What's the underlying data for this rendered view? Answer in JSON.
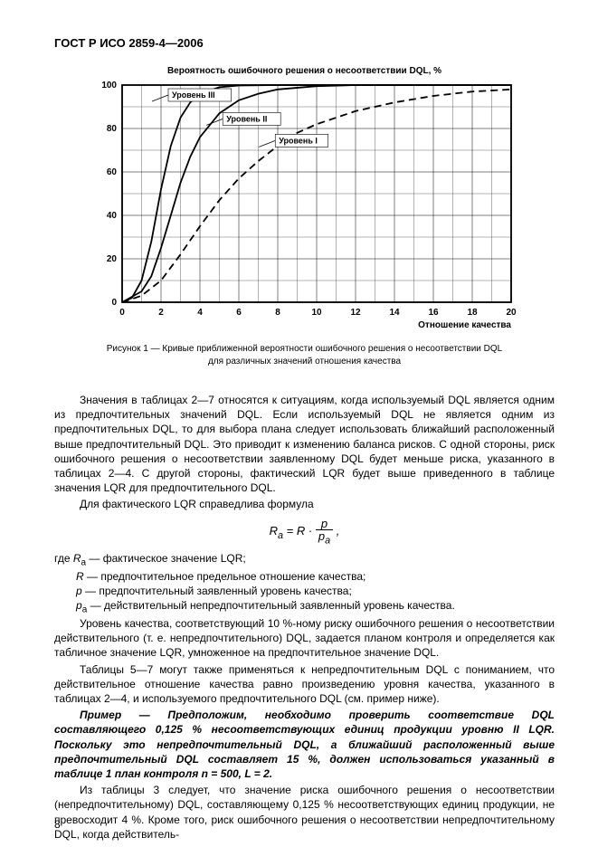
{
  "header": "ГОСТ Р ИСО 2859-4—2006",
  "chart": {
    "title": "Вероятность ошибочного решения о несоответствии DQL, %",
    "xaxis_label": "Отношение качества",
    "xticks": [
      0,
      2,
      4,
      6,
      8,
      10,
      12,
      14,
      16,
      18,
      20
    ],
    "yticks": [
      0,
      20,
      40,
      60,
      80,
      100
    ],
    "xlim": [
      0,
      20
    ],
    "ylim": [
      0,
      100
    ],
    "grid_color": "#000000",
    "bg_color": "#ffffff",
    "line_color": "#000000",
    "series": [
      {
        "name": "Уровень III",
        "label": "Уровень III",
        "label_x": 2.0,
        "label_y": 95,
        "dash": "",
        "pts": [
          [
            0,
            0
          ],
          [
            0.5,
            2
          ],
          [
            1,
            10
          ],
          [
            1.5,
            28
          ],
          [
            2,
            52
          ],
          [
            2.5,
            72
          ],
          [
            3,
            85
          ],
          [
            3.5,
            92
          ],
          [
            4,
            96
          ],
          [
            5,
            99
          ],
          [
            6,
            99.8
          ],
          [
            8,
            100
          ],
          [
            20,
            100
          ]
        ]
      },
      {
        "name": "Уровень II",
        "label": "Уровень II",
        "label_x": 4.8,
        "label_y": 84,
        "dash": "",
        "pts": [
          [
            0,
            0
          ],
          [
            1,
            5
          ],
          [
            1.5,
            12
          ],
          [
            2,
            25
          ],
          [
            2.5,
            40
          ],
          [
            3,
            55
          ],
          [
            3.5,
            67
          ],
          [
            4,
            76
          ],
          [
            5,
            87
          ],
          [
            6,
            93
          ],
          [
            7,
            96
          ],
          [
            8,
            98
          ],
          [
            10,
            99.5
          ],
          [
            12,
            100
          ],
          [
            20,
            100
          ]
        ]
      },
      {
        "name": "Уровень I",
        "label": "Уровень I",
        "label_x": 7.5,
        "label_y": 74,
        "dash": "8 5",
        "pts": [
          [
            0,
            0
          ],
          [
            1,
            3
          ],
          [
            2,
            10
          ],
          [
            3,
            22
          ],
          [
            4,
            35
          ],
          [
            5,
            47
          ],
          [
            6,
            57
          ],
          [
            7,
            65
          ],
          [
            8,
            72
          ],
          [
            9,
            78
          ],
          [
            10,
            82
          ],
          [
            12,
            88
          ],
          [
            14,
            92
          ],
          [
            16,
            95
          ],
          [
            18,
            97
          ],
          [
            20,
            98
          ]
        ]
      }
    ]
  },
  "caption_l1": "Рисунок 1 — Кривые приближенной вероятности ошибочного решения о несоответствии DQL",
  "caption_l2": "для различных значений отношения качества",
  "p1": "Значения в таблицах 2—7 относятся к ситуациям, когда используемый DQL является одним из предпочтительных значений DQL. Если используемый DQL не является одним из предпочтительных DQL, то для выбора плана следует использовать ближайший расположенный выше предпочтительный DQL. Это приводит к изменению баланса рисков. С одной стороны, риск ошибочного решения о несоответствии заявленному DQL будет меньше риска, указанного в таблицах 2—4. С другой стороны, фактический LQR будет выше приведенного в таблице значения LQR для предпочтительного DQL.",
  "p2": "Для фактического LQR справедлива формула",
  "formula_plain": "Rₐ = R · p / pₐ ,",
  "where_intro": "где ",
  "w1": "Rₐ — фактическое значение LQR;",
  "w2": "R — предпочтительное предельное отношение качества;",
  "w3": "p — предпочтительный заявленный уровень качества;",
  "w4": "pₐ — действительный непредпочтительный заявленный уровень качества.",
  "p3": "Уровень качества, соответствующий 10 %-ному риску ошибочного решения о несоответствии действительного (т. е. непредпочтительного) DQL, задается планом контроля и определяется как табличное значение LQR, умноженное на предпочтительное значение DQL.",
  "p4": "Таблицы 5—7 могут также применяться к непредпочтительным DQL с пониманием, что действительное отношение качества равно произведению уровня качества, указанного в таблицах 2—4, и используемого предпочтительного DQL (см. пример ниже).",
  "example": "Пример — Предположим, необходимо проверить соответствие DQL составляющего 0,125 % несоответствующих единиц продукции уровню II LQR. Поскольку это непредпочтительный DQL, а ближайший расположенный выше предпочтительный DQL составляет 15 %, должен использоваться указанный в таблице 1 план контроля n = 500, L = 2.",
  "p5": "Из таблицы 3 следует, что значение риска ошибочного решения о несоответствии (непредпочтительному) DQL, составляющему 0,125 % несоответствующих единиц продукции, не превосходит 4 %. Кроме того, риск ошибочного решения о несоответствии непредпочтительному DQL, когда действитель-",
  "page_num": "8"
}
